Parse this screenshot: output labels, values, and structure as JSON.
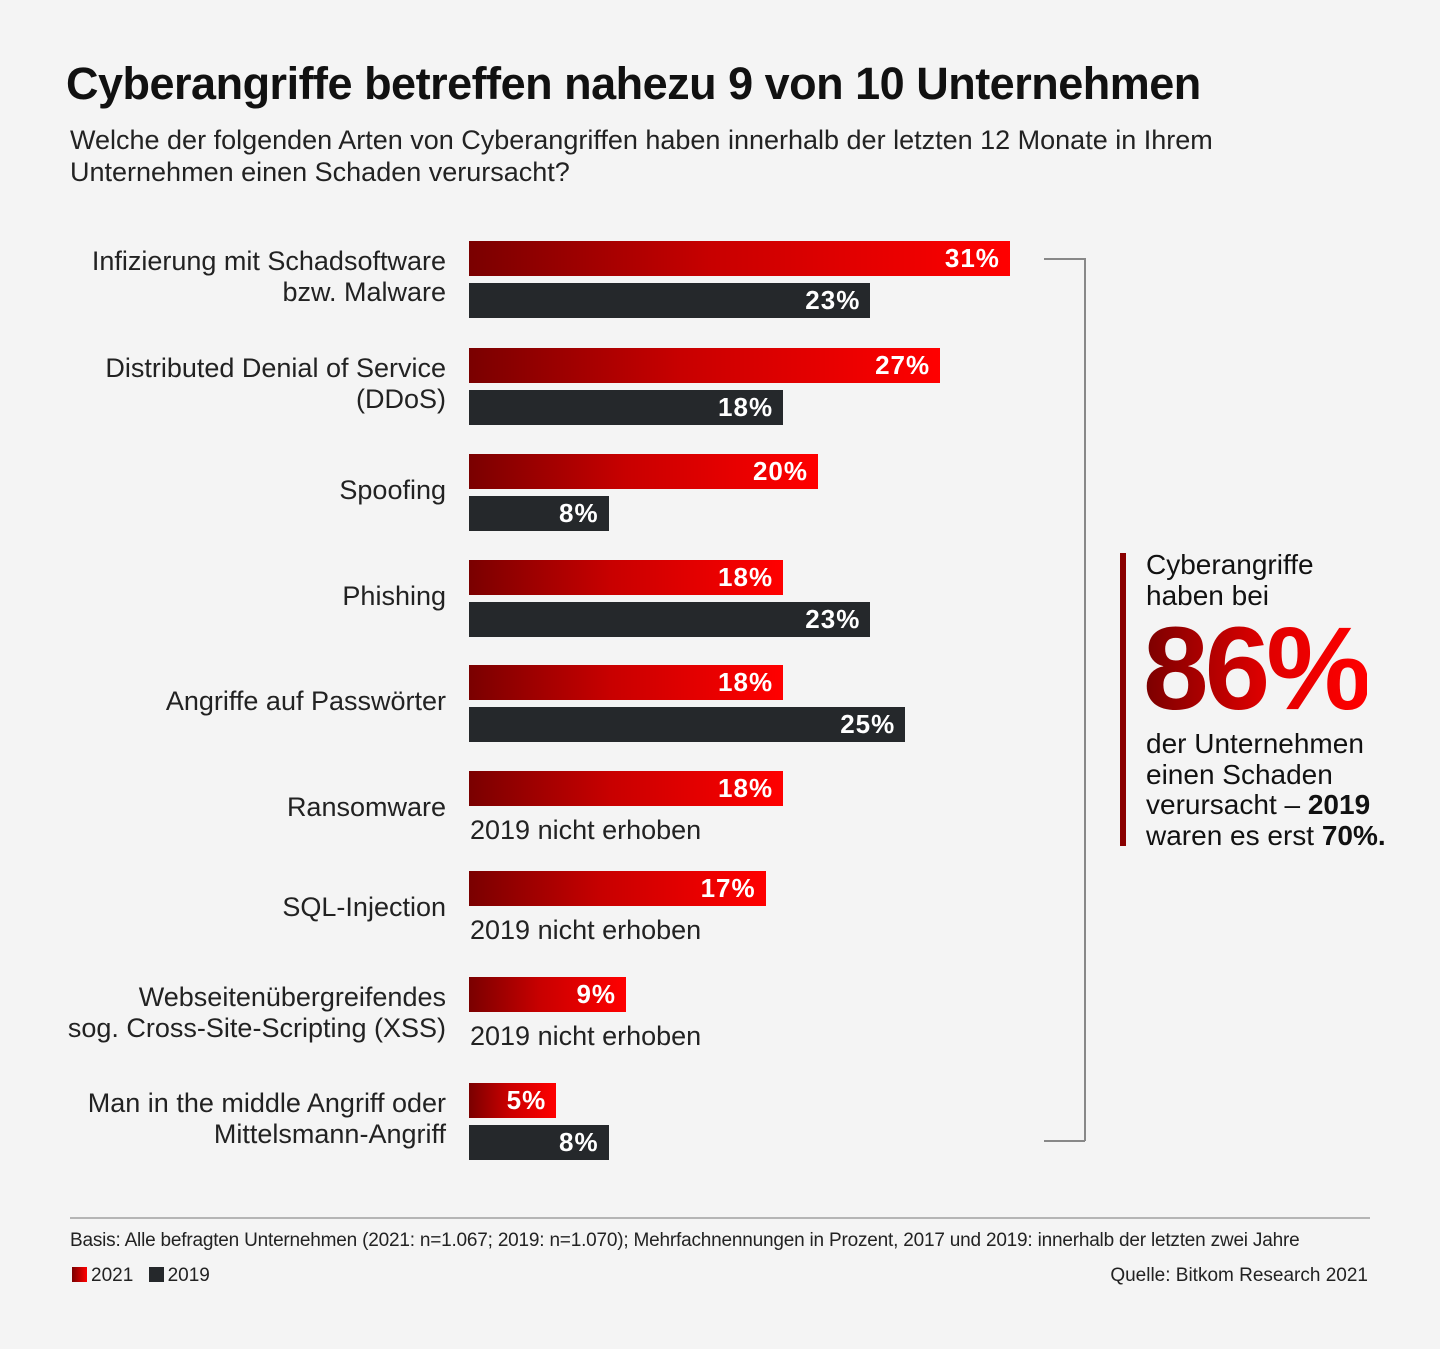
{
  "chart_data": {
    "type": "bar",
    "orientation": "horizontal",
    "title": "Cyberangriffe betreffen nahezu 9 von 10 Unternehmen",
    "subtitle": "Welche der folgenden Arten von Cyberangriffen haben innerhalb der letzten 12 Monate in Ihrem Unternehmen einen Schaden verursacht?",
    "categories": [
      "Infizierung mit Schadsoftware bzw. Malware",
      "Distributed Denial of Service (DDoS)",
      "Spoofing",
      "Phishing",
      "Angriffe auf Passwörter",
      "Ransomware",
      "SQL-Injection",
      "Webseitenübergreifendes sog. Cross-Site-Scripting (XSS)",
      "Man in the middle Angriff oder Mittelsmann-Angriff"
    ],
    "category_lines": [
      [
        "Infizierung mit Schadsoftware",
        "bzw. Malware"
      ],
      [
        "Distributed Denial of Service",
        "(DDoS)"
      ],
      [
        "Spoofing"
      ],
      [
        "Phishing"
      ],
      [
        "Angriffe auf Passwörter"
      ],
      [
        "Ransomware"
      ],
      [
        "SQL-Injection"
      ],
      [
        "Webseitenübergreifendes",
        "sog. Cross-Site-Scripting (XSS)"
      ],
      [
        "Man in the middle Angriff oder",
        "Mittelsmann-Angriff"
      ]
    ],
    "series": [
      {
        "name": "2021",
        "color": "#e60000",
        "values": [
          31,
          27,
          20,
          18,
          18,
          18,
          17,
          9,
          5
        ]
      },
      {
        "name": "2019",
        "color": "#25282b",
        "values": [
          23,
          18,
          8,
          23,
          25,
          null,
          null,
          null,
          8
        ]
      }
    ],
    "value_suffix": "%",
    "missing_label": "2019 nicht erhoben",
    "xlim": [
      0,
      31
    ],
    "grid": false,
    "legend": "bottom-left"
  },
  "callout": {
    "line1": "Cyberangriffe",
    "line2": "haben bei",
    "big": "86%",
    "line3": "der Unternehmen",
    "line4": "einen Schaden",
    "line5_pre": "verursacht – ",
    "line5_bold": "2019",
    "line6_pre": "waren es erst ",
    "line6_bold": "70%."
  },
  "footer": {
    "basis": "Basis: Alle befragten Unternehmen (2021: n=1.067; 2019: n=1.070); Mehrfachnennungen in Prozent, 2017 und 2019: innerhalb der letzten zwei Jahre",
    "legend_2021": "2021",
    "legend_2019": "2019",
    "source": "Quelle: Bitkom Research 2021"
  }
}
